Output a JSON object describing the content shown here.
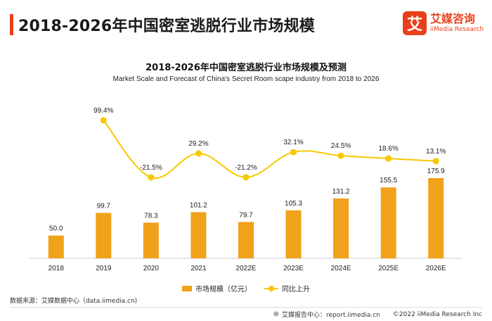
{
  "header": {
    "title": "2018-2026年中国密室逃脱行业市场规模",
    "logo_mark": "艾",
    "logo_cn": "艾媒咨询",
    "logo_en": "iiMedia Research"
  },
  "chart_data": {
    "type": "bar",
    "title": "2018-2026年中国密室逃脱行业市场规模及预测",
    "subtitle": "Market Scale and Forecast of China's Secret Room scape  industry from 2018 to 2026",
    "categories": [
      "2018",
      "2019",
      "2020",
      "2021",
      "2022E",
      "2023E",
      "2024E",
      "2025E",
      "2026E"
    ],
    "series": [
      {
        "name": "市场规模（亿元）",
        "type": "bar",
        "values": [
          50.0,
          99.7,
          78.3,
          101.2,
          79.7,
          105.3,
          131.2,
          155.5,
          175.9
        ],
        "labels": [
          "50.0",
          "99.7",
          "78.3",
          "101.2",
          "79.7",
          "105.3",
          "131.2",
          "155.5",
          "175.9"
        ],
        "color": "#f0a21b"
      },
      {
        "name": "同比上升",
        "type": "line",
        "values": [
          null,
          99.4,
          -21.5,
          29.2,
          -21.2,
          32.1,
          24.5,
          18.6,
          13.1
        ],
        "labels": [
          "",
          "99.4%",
          "-21.5%",
          "29.2%",
          "-21.2%",
          "32.1%",
          "24.5%",
          "18.6%",
          "13.1%"
        ],
        "color": "#f7c800"
      }
    ],
    "legend_position": "bottom",
    "grid": false
  },
  "footer": {
    "source": "数据来源：艾媒数据中心（data.iimedia.cn)",
    "report": "艾媒报告中心：report.iimedia.cn",
    "copyright": "©2022  iiMedia Research  Inc"
  },
  "colors": {
    "accent": "#e8401c",
    "bar": "#f0a21b",
    "line": "#f7c800"
  }
}
